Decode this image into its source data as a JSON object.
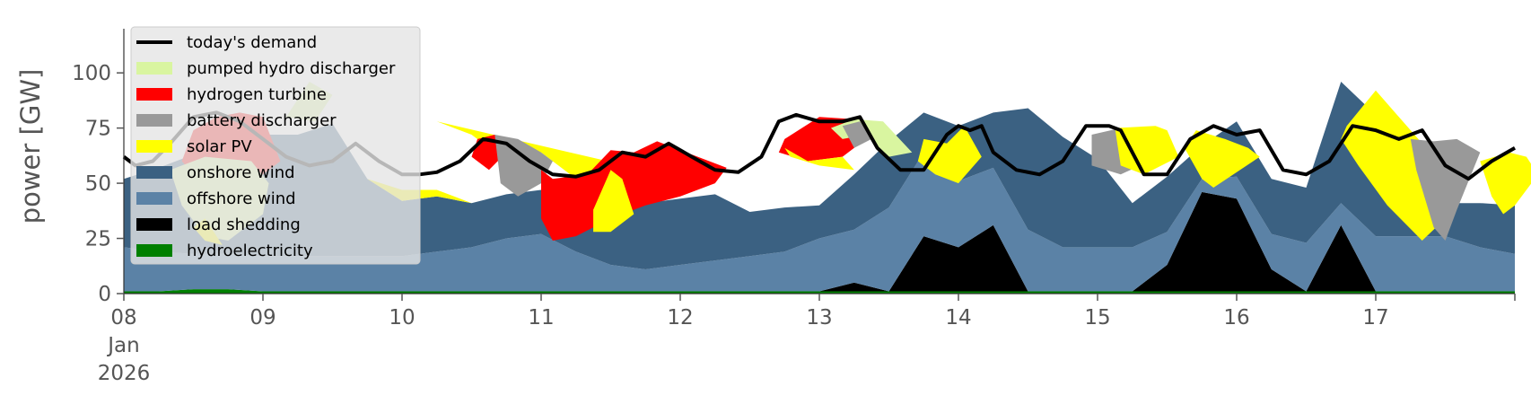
{
  "chart_data": {
    "type": "area",
    "ylabel": "power [GW]",
    "ylim": [
      0,
      120
    ],
    "xlim": [
      "2026-01-08T00:00",
      "2026-01-18T00:00"
    ],
    "y_ticks": [
      0,
      25,
      50,
      75,
      100
    ],
    "x_tick_labels": [
      {
        "day": "2026-01-08",
        "lines": [
          "08",
          "Jan",
          "2026"
        ]
      },
      {
        "day": "2026-01-09",
        "lines": [
          "09"
        ]
      },
      {
        "day": "2026-01-10",
        "lines": [
          "10"
        ]
      },
      {
        "day": "2026-01-11",
        "lines": [
          "11"
        ]
      },
      {
        "day": "2026-01-12",
        "lines": [
          "12"
        ]
      },
      {
        "day": "2026-01-13",
        "lines": [
          "13"
        ]
      },
      {
        "day": "2026-01-14",
        "lines": [
          "14"
        ]
      },
      {
        "day": "2026-01-15",
        "lines": [
          "15"
        ]
      },
      {
        "day": "2026-01-16",
        "lines": [
          "16"
        ]
      },
      {
        "day": "2026-01-17",
        "lines": [
          "17"
        ]
      }
    ],
    "grid": false,
    "legend_position": "top-left",
    "legend": [
      {
        "name": "today's demand",
        "color": "#000000",
        "kind": "line"
      },
      {
        "name": "pumped hydro discharger",
        "color": "#d9f5a0",
        "kind": "patch"
      },
      {
        "name": "hydrogen turbine",
        "color": "#ff0000",
        "kind": "patch"
      },
      {
        "name": "battery discharger",
        "color": "#999999",
        "kind": "patch"
      },
      {
        "name": "solar PV",
        "color": "#ffff00",
        "kind": "patch"
      },
      {
        "name": "onshore wind",
        "color": "#3b6182",
        "kind": "patch"
      },
      {
        "name": "offshore wind",
        "color": "#5b82a6",
        "kind": "patch"
      },
      {
        "name": "load shedding",
        "color": "#000000",
        "kind": "patch"
      },
      {
        "name": "hydroelectricity",
        "color": "#008000",
        "kind": "patch"
      }
    ],
    "x_hours": [
      0,
      6,
      12,
      18,
      24,
      30,
      36,
      42,
      48,
      54,
      60,
      66,
      72,
      78,
      84,
      90,
      96,
      102,
      108,
      114,
      120,
      126,
      132,
      138,
      144,
      150,
      156,
      162,
      168,
      174,
      180,
      186,
      192,
      198,
      204,
      210,
      216,
      222,
      228,
      234,
      240
    ],
    "stack_order": [
      "hydroelectricity",
      "load shedding",
      "offshore wind",
      "onshore wind",
      "solar PV",
      "battery discharger",
      "hydrogen turbine",
      "pumped hydro discharger"
    ],
    "series": [
      {
        "name": "hydroelectricity",
        "values": [
          1,
          1,
          2,
          2,
          1,
          1,
          1,
          1,
          1,
          1,
          1,
          1,
          1,
          1,
          1,
          1,
          1,
          1,
          1,
          1,
          1,
          1,
          1,
          1,
          1,
          1,
          1,
          1,
          1,
          1,
          1,
          1,
          1,
          1,
          1,
          1,
          1,
          1,
          1,
          1,
          1
        ]
      },
      {
        "name": "load shedding",
        "values": [
          0,
          0,
          0,
          0,
          0,
          0,
          0,
          0,
          0,
          0,
          0,
          0,
          0,
          0,
          0,
          0,
          0,
          0,
          0,
          0,
          0,
          4,
          0,
          25,
          20,
          30,
          0,
          0,
          0,
          0,
          12,
          45,
          42,
          10,
          0,
          30,
          0,
          0,
          0,
          0,
          0
        ]
      },
      {
        "name": "offshore wind",
        "values": [
          20,
          18,
          16,
          16,
          16,
          16,
          16,
          16,
          16,
          18,
          20,
          24,
          26,
          18,
          12,
          10,
          12,
          14,
          16,
          18,
          24,
          24,
          38,
          38,
          30,
          26,
          28,
          20,
          20,
          20,
          15,
          6,
          10,
          16,
          22,
          10,
          25,
          25,
          25,
          20,
          17
        ]
      },
      {
        "name": "onshore wind",
        "values": [
          31,
          38,
          45,
          55,
          55,
          55,
          60,
          35,
          25,
          25,
          20,
          20,
          20,
          20,
          25,
          30,
          30,
          30,
          20,
          20,
          15,
          25,
          30,
          18,
          25,
          25,
          55,
          50,
          40,
          20,
          25,
          15,
          25,
          25,
          25,
          55,
          55,
          5,
          15,
          20,
          22
        ]
      },
      {
        "name": "solar PV",
        "values": [
          0,
          0,
          0,
          0,
          0,
          0,
          0,
          0,
          5,
          3,
          0,
          0,
          0,
          0,
          0,
          0,
          0,
          0,
          0,
          0,
          0,
          0,
          0,
          0,
          0,
          0,
          0,
          0,
          0,
          0,
          0,
          0,
          0,
          0,
          0,
          0,
          0,
          0,
          0,
          0,
          0
        ]
      },
      {
        "name": "battery discharger",
        "values": [
          0,
          0,
          0,
          0,
          0,
          0,
          0,
          0,
          0,
          0,
          0,
          0,
          0,
          0,
          0,
          0,
          0,
          0,
          0,
          0,
          0,
          0,
          0,
          0,
          0,
          0,
          0,
          0,
          0,
          0,
          0,
          0,
          0,
          0,
          0,
          0,
          0,
          0,
          0,
          0,
          0
        ]
      },
      {
        "name": "hydrogen turbine",
        "values": [
          0,
          0,
          0,
          0,
          0,
          0,
          0,
          0,
          0,
          0,
          0,
          0,
          0,
          0,
          0,
          0,
          0,
          0,
          0,
          0,
          0,
          0,
          0,
          0,
          0,
          0,
          0,
          0,
          0,
          0,
          0,
          0,
          0,
          0,
          0,
          0,
          0,
          0,
          0,
          0,
          0
        ]
      },
      {
        "name": "pumped hydro discharger",
        "values": [
          0,
          0,
          0,
          0,
          0,
          0,
          0,
          0,
          0,
          0,
          0,
          0,
          0,
          0,
          0,
          0,
          0,
          0,
          0,
          0,
          0,
          0,
          0,
          0,
          0,
          0,
          0,
          0,
          0,
          0,
          0,
          0,
          0,
          0,
          0,
          0,
          0,
          0,
          0,
          0,
          0
        ]
      }
    ],
    "overlays": [
      {
        "name": "solar PV",
        "points": [
          [
            54,
            78
          ],
          [
            60,
            72
          ],
          [
            66,
            60
          ],
          [
            72,
            64
          ],
          [
            78,
            52
          ],
          [
            84,
            44
          ],
          [
            90,
            56
          ]
        ]
      },
      {
        "name": "hydrogen turbine",
        "points": [
          [
            12,
            74
          ],
          [
            16,
            80
          ],
          [
            20,
            82
          ],
          [
            24,
            80
          ],
          [
            27,
            60
          ],
          [
            22,
            50
          ],
          [
            14,
            48
          ],
          [
            10,
            60
          ]
        ]
      },
      {
        "name": "hydrogen turbine",
        "points": [
          [
            61,
            70
          ],
          [
            64,
            72
          ],
          [
            66,
            64
          ],
          [
            63,
            56
          ],
          [
            60,
            62
          ]
        ]
      },
      {
        "name": "battery discharger",
        "points": [
          [
            64,
            72
          ],
          [
            68,
            70
          ],
          [
            72,
            64
          ],
          [
            74,
            60
          ],
          [
            72,
            50
          ],
          [
            68,
            44
          ],
          [
            65,
            50
          ]
        ]
      },
      {
        "name": "hydrogen turbine",
        "points": [
          [
            72,
            56
          ],
          [
            74,
            52
          ],
          [
            80,
            54
          ],
          [
            84,
            65
          ],
          [
            88,
            64
          ],
          [
            92,
            69
          ],
          [
            98,
            63
          ],
          [
            104,
            57
          ],
          [
            102,
            50
          ],
          [
            96,
            44
          ],
          [
            90,
            40
          ],
          [
            84,
            34
          ],
          [
            78,
            26
          ],
          [
            74,
            24
          ],
          [
            72,
            34
          ]
        ]
      },
      {
        "name": "solar PV",
        "points": [
          [
            81,
            38
          ],
          [
            84,
            56
          ],
          [
            86,
            52
          ],
          [
            88,
            36
          ],
          [
            84,
            28
          ],
          [
            81,
            28
          ]
        ]
      },
      {
        "name": "pumped hydro discharger",
        "points": [
          [
            8,
            56
          ],
          [
            10,
            40
          ],
          [
            14,
            26
          ],
          [
            18,
            24
          ],
          [
            24,
            36
          ],
          [
            25,
            50
          ],
          [
            22,
            60
          ],
          [
            14,
            62
          ]
        ]
      },
      {
        "name": "solar PV",
        "points": [
          [
            12,
            30
          ],
          [
            14,
            24
          ],
          [
            17,
            22
          ],
          [
            14,
            34
          ]
        ]
      },
      {
        "name": "pumped hydro discharger",
        "points": [
          [
            28,
            80
          ],
          [
            32,
            96
          ],
          [
            36,
            90
          ],
          [
            33,
            78
          ]
        ]
      },
      {
        "name": "hydrogen turbine",
        "points": [
          [
            114,
            70
          ],
          [
            120,
            80
          ],
          [
            126,
            79
          ],
          [
            130,
            74
          ],
          [
            124,
            62
          ],
          [
            118,
            60
          ],
          [
            113,
            64
          ]
        ]
      },
      {
        "name": "solar PV",
        "points": [
          [
            114,
            66
          ],
          [
            118,
            60
          ],
          [
            124,
            62
          ],
          [
            126,
            56
          ],
          [
            120,
            58
          ],
          [
            115,
            62
          ]
        ]
      },
      {
        "name": "pumped hydro discharger",
        "points": [
          [
            122,
            75
          ],
          [
            126,
            79
          ],
          [
            131,
            78
          ],
          [
            136,
            64
          ],
          [
            132,
            62
          ],
          [
            128,
            72
          ],
          [
            124,
            70
          ]
        ]
      },
      {
        "name": "battery discharger",
        "points": [
          [
            124,
            76
          ],
          [
            127,
            78
          ],
          [
            129,
            70
          ],
          [
            126,
            66
          ]
        ]
      },
      {
        "name": "solar PV",
        "points": [
          [
            138,
            70
          ],
          [
            142,
            68
          ],
          [
            145,
            76
          ],
          [
            148,
            62
          ],
          [
            144,
            50
          ],
          [
            140,
            54
          ],
          [
            137,
            60
          ]
        ]
      },
      {
        "name": "battery discharger",
        "points": [
          [
            167,
            72
          ],
          [
            172,
            75
          ],
          [
            176,
            74
          ],
          [
            177,
            60
          ],
          [
            172,
            54
          ],
          [
            167,
            58
          ]
        ]
      },
      {
        "name": "solar PV",
        "points": [
          [
            171,
            75
          ],
          [
            178,
            76
          ],
          [
            180,
            74
          ],
          [
            182,
            62
          ],
          [
            176,
            54
          ],
          [
            172,
            58
          ]
        ]
      },
      {
        "name": "solar PV",
        "points": [
          [
            185,
            74
          ],
          [
            190,
            70
          ],
          [
            194,
            66
          ],
          [
            196,
            62
          ],
          [
            188,
            48
          ],
          [
            186,
            52
          ],
          [
            183,
            66
          ]
        ]
      },
      {
        "name": "solar PV",
        "points": [
          [
            211,
            76
          ],
          [
            216,
            92
          ],
          [
            220,
            80
          ],
          [
            224,
            68
          ],
          [
            228,
            34
          ],
          [
            224,
            24
          ],
          [
            218,
            40
          ],
          [
            213,
            58
          ],
          [
            210,
            70
          ]
        ]
      },
      {
        "name": "battery discharger",
        "points": [
          [
            222,
            70
          ],
          [
            226,
            69
          ],
          [
            230,
            70
          ],
          [
            234,
            64
          ],
          [
            230,
            38
          ],
          [
            228,
            24
          ],
          [
            226,
            30
          ],
          [
            223,
            56
          ]
        ]
      },
      {
        "name": "solar PV",
        "points": [
          [
            234,
            60
          ],
          [
            239,
            64
          ],
          [
            242,
            62
          ],
          [
            244,
            54
          ],
          [
            240,
            40
          ],
          [
            238,
            36
          ],
          [
            236,
            44
          ]
        ]
      }
    ],
    "demand_line": {
      "name": "today's demand",
      "x": [
        0,
        2,
        5,
        8,
        12,
        16,
        20,
        24,
        28,
        32,
        36,
        40,
        44,
        48,
        51,
        54,
        58,
        62,
        66,
        70,
        74,
        78,
        82,
        86,
        90,
        94,
        98,
        102,
        106,
        110,
        113,
        116,
        120,
        124,
        127,
        130,
        134,
        138,
        142,
        144,
        146,
        148,
        150,
        154,
        158,
        162,
        166,
        168,
        170,
        172,
        176,
        180,
        184,
        188,
        192,
        196,
        200,
        204,
        208,
        212,
        216,
        220,
        224,
        228,
        232,
        236,
        240
      ],
      "y": [
        62,
        58,
        60,
        68,
        80,
        82,
        78,
        70,
        62,
        58,
        60,
        68,
        60,
        54,
        54,
        55,
        60,
        70,
        68,
        60,
        54,
        53,
        56,
        64,
        62,
        68,
        62,
        56,
        55,
        62,
        78,
        81,
        78,
        78,
        80,
        66,
        56,
        56,
        72,
        76,
        74,
        76,
        64,
        56,
        54,
        60,
        76,
        76,
        76,
        74,
        54,
        54,
        70,
        76,
        72,
        74,
        56,
        54,
        60,
        76,
        74,
        70,
        74,
        58,
        52,
        60,
        66
      ]
    }
  }
}
